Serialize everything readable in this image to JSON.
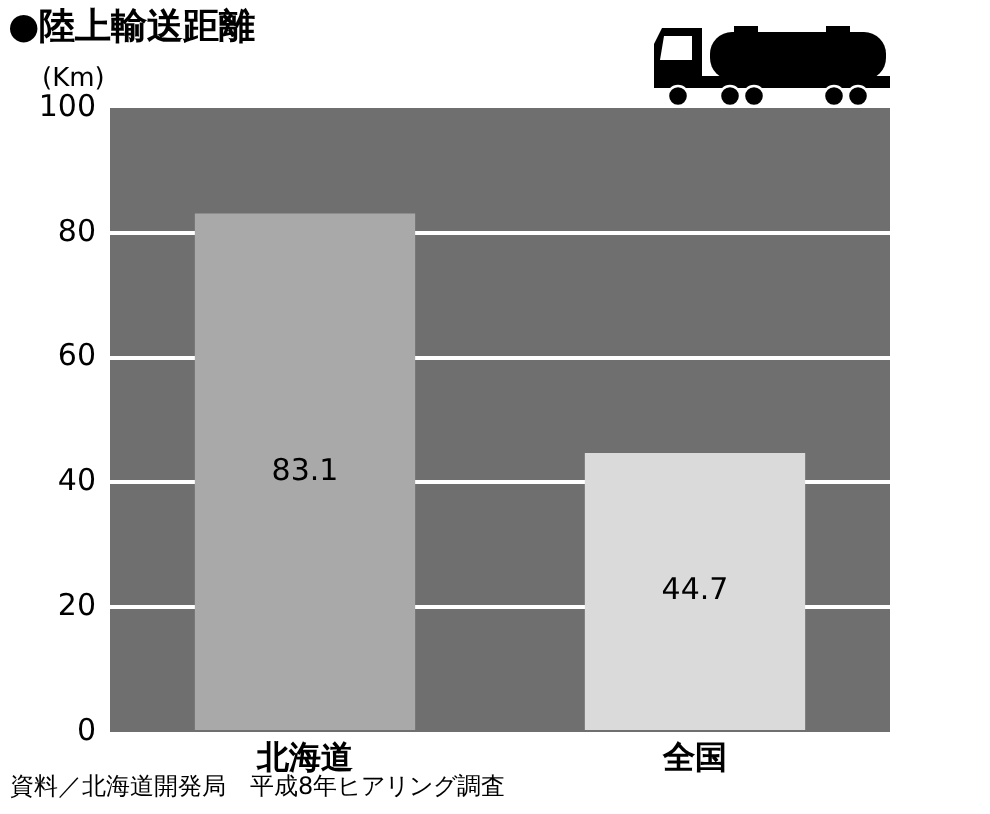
{
  "chart_data": {
    "type": "bar",
    "title": "●陸上輸送距離",
    "ylabel": "(Km)",
    "categories": [
      "北海道",
      "全国"
    ],
    "values": [
      83.1,
      44.7
    ],
    "colors": [
      "#a9a9a9",
      "#dadada"
    ],
    "ylim": [
      0,
      100
    ],
    "yticks": [
      0,
      20,
      40,
      60,
      80,
      100
    ],
    "grid": "y",
    "data_labels": true,
    "annotations": [
      "資料／北海道開発局　平成8年ヒアリング調査"
    ]
  }
}
